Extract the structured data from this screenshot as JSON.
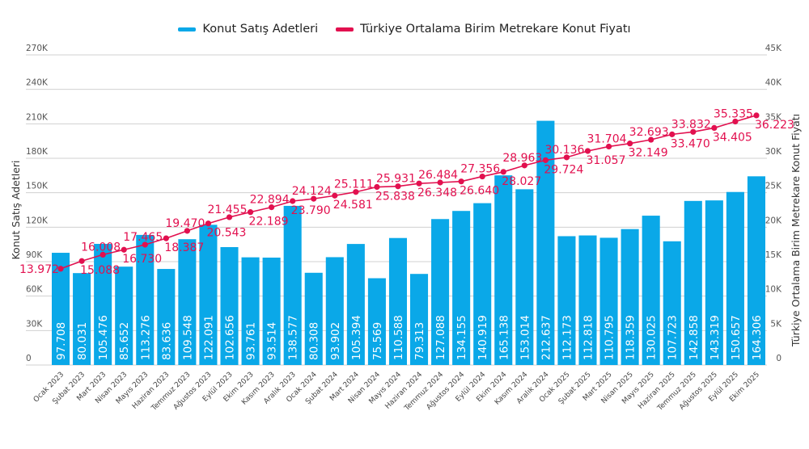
{
  "chart_data": {
    "type": "bar",
    "title": "",
    "legend_position": "top-center",
    "grid": true,
    "categories": [
      "Ocak 2023",
      "Şubat 2023",
      "Mart 2023",
      "Nisan 2023",
      "Mayıs 2023",
      "Haziran 2023",
      "Temmuz 2023",
      "Ağustos 2023",
      "Eylül 2023",
      "Ekim 2023",
      "Kasım 2023",
      "Aralık 2023",
      "Ocak 2024",
      "Şubat 2024",
      "Mart 2024",
      "Nisan 2024",
      "Mayıs 2024",
      "Haziran 2024",
      "Temmuz 2024",
      "Ağustos 2024",
      "Eylül 2024",
      "Ekim 2024",
      "Kasım 2024",
      "Aralık 2024",
      "Ocak 2025",
      "Şubat 2025",
      "Mart 2025",
      "Nisan 2025",
      "Mayıs 2025",
      "Haziran 2025",
      "Temmuz 2025",
      "Ağustos 2025",
      "Eylül 2025",
      "Ekim 2025"
    ],
    "series": [
      {
        "name": "Konut Satış Adetleri",
        "type": "bar",
        "axis": "left",
        "color": "#0aa8e8",
        "values": [
          97708,
          80031,
          105476,
          85652,
          113276,
          83636,
          109548,
          122091,
          102656,
          93761,
          93514,
          138577,
          80308,
          93902,
          105394,
          75569,
          110588,
          79313,
          127088,
          134155,
          140919,
          165138,
          153014,
          212637,
          112173,
          112818,
          110795,
          118359,
          130025,
          107723,
          142858,
          143319,
          150657,
          164306
        ],
        "labels": [
          "97.708",
          "80.031",
          "105.476",
          "85.652",
          "113.276",
          "83.636",
          "109.548",
          "122.091",
          "102.656",
          "93.761",
          "93.514",
          "138.577",
          "80.308",
          "93.902",
          "105.394",
          "75.569",
          "110.588",
          "79.313",
          "127.088",
          "134.155",
          "140.919",
          "165.138",
          "153.014",
          "212.637",
          "112.173",
          "112.818",
          "110.795",
          "118.359",
          "130.025",
          "107.723",
          "142.858",
          "143.319",
          "150.657",
          "164.306"
        ]
      },
      {
        "name": "Türkiye Ortalama Birim Metrekare Konut Fiyatı",
        "type": "line",
        "axis": "right",
        "color": "#e2104f",
        "values": [
          13972,
          15088,
          16008,
          16730,
          17465,
          18387,
          19470,
          20543,
          21455,
          22189,
          22894,
          23790,
          24124,
          24581,
          25111,
          25838,
          25931,
          26348,
          26484,
          26640,
          27356,
          28027,
          28963,
          29724,
          30136,
          31057,
          31704,
          32149,
          32693,
          33470,
          33832,
          34405,
          35335,
          36223
        ],
        "labels": [
          "13.972",
          "15.088",
          "16.008",
          "16.730",
          "17.465",
          "18.387",
          "19.470",
          "20.543",
          "21.455",
          "22.189",
          "22.894",
          "23.790",
          "24.124",
          "24.581",
          "25.111",
          "25.838",
          "25.931",
          "26.348",
          "26.484",
          "26.640",
          "27.356",
          "28.027",
          "28.963",
          "29.724",
          "30.136",
          "31.057",
          "31.704",
          "32.149",
          "32.693",
          "33.470",
          "33.832",
          "34.405",
          "35.335",
          "36.223"
        ]
      }
    ],
    "ylabel": "Konut Satış Adetleri",
    "ylim": [
      0,
      270000
    ],
    "yticks": [
      "0",
      "30K",
      "60K",
      "90K",
      "120K",
      "150K",
      "180K",
      "210K",
      "240K",
      "270K"
    ],
    "y2label": "Türkiye Ortalama Birim Metrekare Konut Fiyatı",
    "y2lim": [
      0,
      45000
    ],
    "y2ticks": [
      "0",
      "5K",
      "10K",
      "15K",
      "20K",
      "25K",
      "30K",
      "35K",
      "40K",
      "45K"
    ]
  }
}
